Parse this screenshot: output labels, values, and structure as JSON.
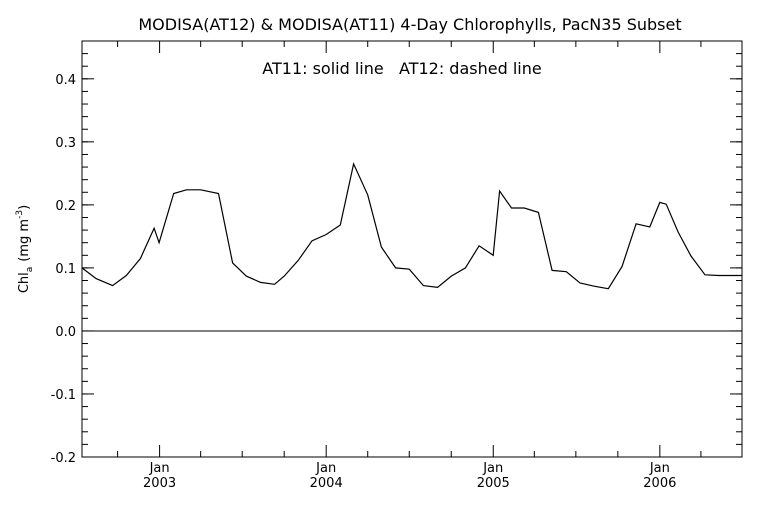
{
  "chart_data": {
    "type": "line",
    "title": "MODISA(AT12) & MODISA(AT11) 4-Day Chlorophylls, PacN35 Subset",
    "annotation": "AT11: solid line   AT12: dashed line",
    "ylabel_main": "Chl",
    "ylabel_sub": "a",
    "ylabel_units": "(mg m",
    "ylabel_sup": "-3",
    "ylabel_close": ")",
    "ylim": [
      -0.2,
      0.46
    ],
    "yticks": [
      -0.2,
      -0.1,
      0.0,
      0.1,
      0.2,
      0.3,
      0.4
    ],
    "ytick_labels": [
      "-0.2",
      "-0.1",
      "0.0",
      "0.1",
      "0.2",
      "0.3",
      "0.4"
    ],
    "xlim": [
      "2002-07-15",
      "2006-06-30"
    ],
    "x_major": [
      {
        "date": "2003-01-01",
        "month": "Jan",
        "year": "2003"
      },
      {
        "date": "2004-01-01",
        "month": "Jan",
        "year": "2004"
      },
      {
        "date": "2005-01-01",
        "month": "Jan",
        "year": "2005"
      },
      {
        "date": "2006-01-01",
        "month": "Jan",
        "year": "2006"
      }
    ],
    "zero_line": 0.0,
    "series": [
      {
        "name": "AT11",
        "style": "solid",
        "x": [
          "2002-07-15",
          "2002-08-15",
          "2002-09-20",
          "2002-10-20",
          "2002-11-20",
          "2002-12-20",
          "2002-12-31",
          "2003-02-01",
          "2003-03-01",
          "2003-04-01",
          "2003-05-10",
          "2003-06-10",
          "2003-07-10",
          "2003-08-10",
          "2003-09-10",
          "2003-10-01",
          "2003-11-01",
          "2003-12-01",
          "2004-01-01",
          "2004-02-01",
          "2004-03-01",
          "2004-04-01",
          "2004-05-01",
          "2004-06-01",
          "2004-07-01",
          "2004-08-01",
          "2004-09-01",
          "2004-10-01",
          "2004-11-01",
          "2004-12-01",
          "2005-01-01",
          "2005-01-15",
          "2005-02-10",
          "2005-03-10",
          "2005-04-10",
          "2005-05-10",
          "2005-06-10",
          "2005-07-10",
          "2005-08-10",
          "2005-09-10",
          "2005-10-10",
          "2005-11-10",
          "2005-12-10",
          "2006-01-01",
          "2006-01-15",
          "2006-02-10",
          "2006-03-10",
          "2006-04-10",
          "2006-05-10",
          "2006-06-10",
          "2006-06-30"
        ],
        "values": [
          0.1,
          0.083,
          0.072,
          0.088,
          0.115,
          0.163,
          0.14,
          0.218,
          0.224,
          0.224,
          0.218,
          0.108,
          0.087,
          0.077,
          0.074,
          0.087,
          0.112,
          0.143,
          0.153,
          0.168,
          0.265,
          0.216,
          0.133,
          0.1,
          0.098,
          0.072,
          0.069,
          0.087,
          0.1,
          0.135,
          0.12,
          0.222,
          0.195,
          0.195,
          0.188,
          0.096,
          0.094,
          0.076,
          0.071,
          0.067,
          0.102,
          0.17,
          0.165,
          0.204,
          0.201,
          0.157,
          0.119,
          0.089,
          0.088,
          0.088,
          0.088
        ]
      },
      {
        "name": "AT12",
        "style": "dashed",
        "x": [],
        "values": []
      }
    ],
    "grid": false
  }
}
